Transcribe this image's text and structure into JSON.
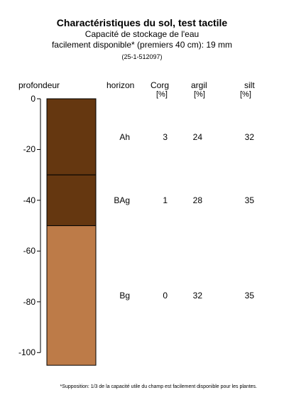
{
  "chart_data": {
    "type": "table",
    "title": "Charactéristiques du sol, test tactile",
    "subtitle_line1": "Capacité de stockage de l'eau",
    "subtitle_line2": "facilement disponible* (premiers 40 cm): 19 mm",
    "plot_id": "(25-1-512097)",
    "ylabel": "profondeur",
    "ylim": [
      -105,
      0
    ],
    "yticks": [
      0,
      -20,
      -40,
      -60,
      -80,
      -100
    ],
    "columns": {
      "horizon": "horizon",
      "corg": "Corg",
      "corg_unit": "[%]",
      "argil": "argil",
      "argil_unit": "[%]",
      "silt": "silt",
      "silt_unit": "[%]"
    },
    "horizons": [
      {
        "name": "Ah",
        "top": 0,
        "bottom": -30,
        "color": "#653710",
        "corg": "3",
        "argil": "24",
        "silt": "32"
      },
      {
        "name": "BAg",
        "top": -30,
        "bottom": -50,
        "color": "#653710",
        "corg": "1",
        "argil": "28",
        "silt": "35"
      },
      {
        "name": "Bg",
        "top": -50,
        "bottom": -105,
        "color": "#bd7b48",
        "corg": "0",
        "argil": "32",
        "silt": "35"
      }
    ],
    "footnote": "*Supposition: 1/3 de la capacité utile du champ est facilement disponible pour les plantes."
  }
}
